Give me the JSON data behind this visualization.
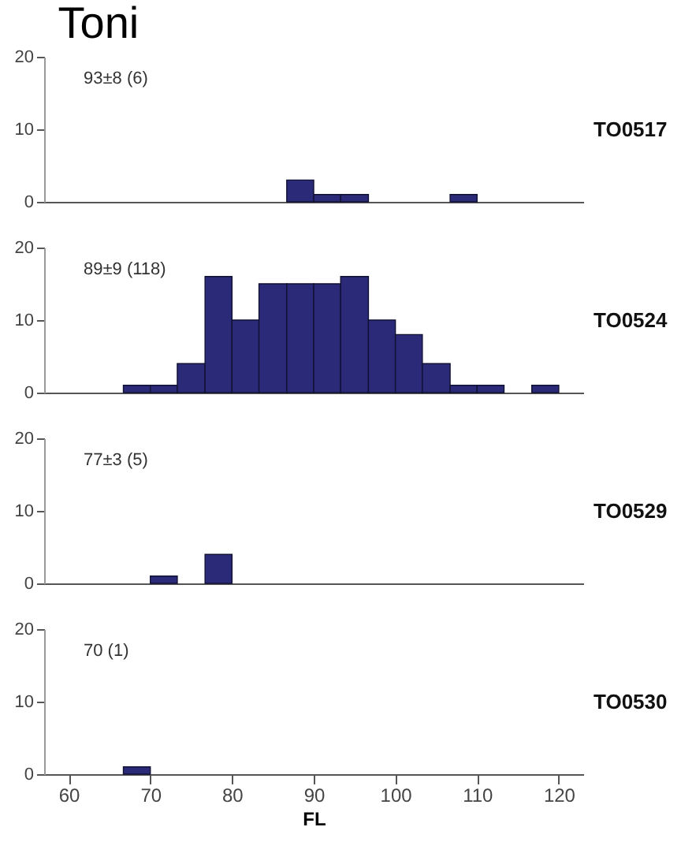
{
  "chart_data": [
    {
      "type": "histogram",
      "title": "Toni",
      "y2label": "TO0517",
      "annotations": [
        "93±8 (6)"
      ],
      "color": "#2a2a78",
      "bins": [
        86.7,
        90,
        93.3,
        96.7,
        106.7,
        110
      ],
      "values": [
        3,
        1,
        1,
        0,
        1
      ],
      "xlim": [
        57,
        123
      ],
      "xticks": [
        60,
        70,
        80,
        90,
        100,
        110,
        120
      ],
      "ylim": [
        0,
        20
      ],
      "yticks": [
        0,
        10,
        20
      ],
      "tick_labels": "y"
    },
    {
      "type": "histogram",
      "y2label": "TO0524",
      "annotations": [
        "89±9 (118)"
      ],
      "color": "#2a2a78",
      "bins": [
        66.7,
        70,
        73.3,
        76.7,
        80,
        83.3,
        86.7,
        90,
        93.3,
        96.7,
        100,
        103.3,
        106.7,
        110,
        113.3,
        116.7,
        120
      ],
      "values": [
        1,
        1,
        4,
        16,
        10,
        15,
        15,
        15,
        16,
        10,
        8,
        4,
        1,
        1,
        0,
        1
      ],
      "xlim": [
        57,
        123
      ],
      "xticks": [
        60,
        70,
        80,
        90,
        100,
        110,
        120
      ],
      "ylim": [
        0,
        20
      ],
      "yticks": [
        0,
        10,
        20
      ],
      "tick_labels": "y"
    },
    {
      "type": "histogram",
      "y2label": "TO0529",
      "annotations": [
        "77±3 (5)"
      ],
      "color": "#2a2a78",
      "bins": [
        70,
        73.3,
        76.7,
        80
      ],
      "values": [
        1,
        0,
        4
      ],
      "xlim": [
        57,
        123
      ],
      "xticks": [
        60,
        70,
        80,
        90,
        100,
        110,
        120
      ],
      "ylim": [
        0,
        20
      ],
      "yticks": [
        0,
        10,
        20
      ],
      "tick_labels": "y"
    },
    {
      "type": "histogram",
      "y2label": "TO0530",
      "xlabel": "FL",
      "annotations": [
        "70 (1)"
      ],
      "color": "#2a2a78",
      "bins": [
        66.7,
        70
      ],
      "values": [
        1
      ],
      "xlim": [
        57,
        123
      ],
      "xticks": [
        60,
        70,
        80,
        90,
        100,
        110,
        120
      ],
      "ylim": [
        0,
        20
      ],
      "yticks": [
        0,
        10,
        20
      ]
    }
  ]
}
